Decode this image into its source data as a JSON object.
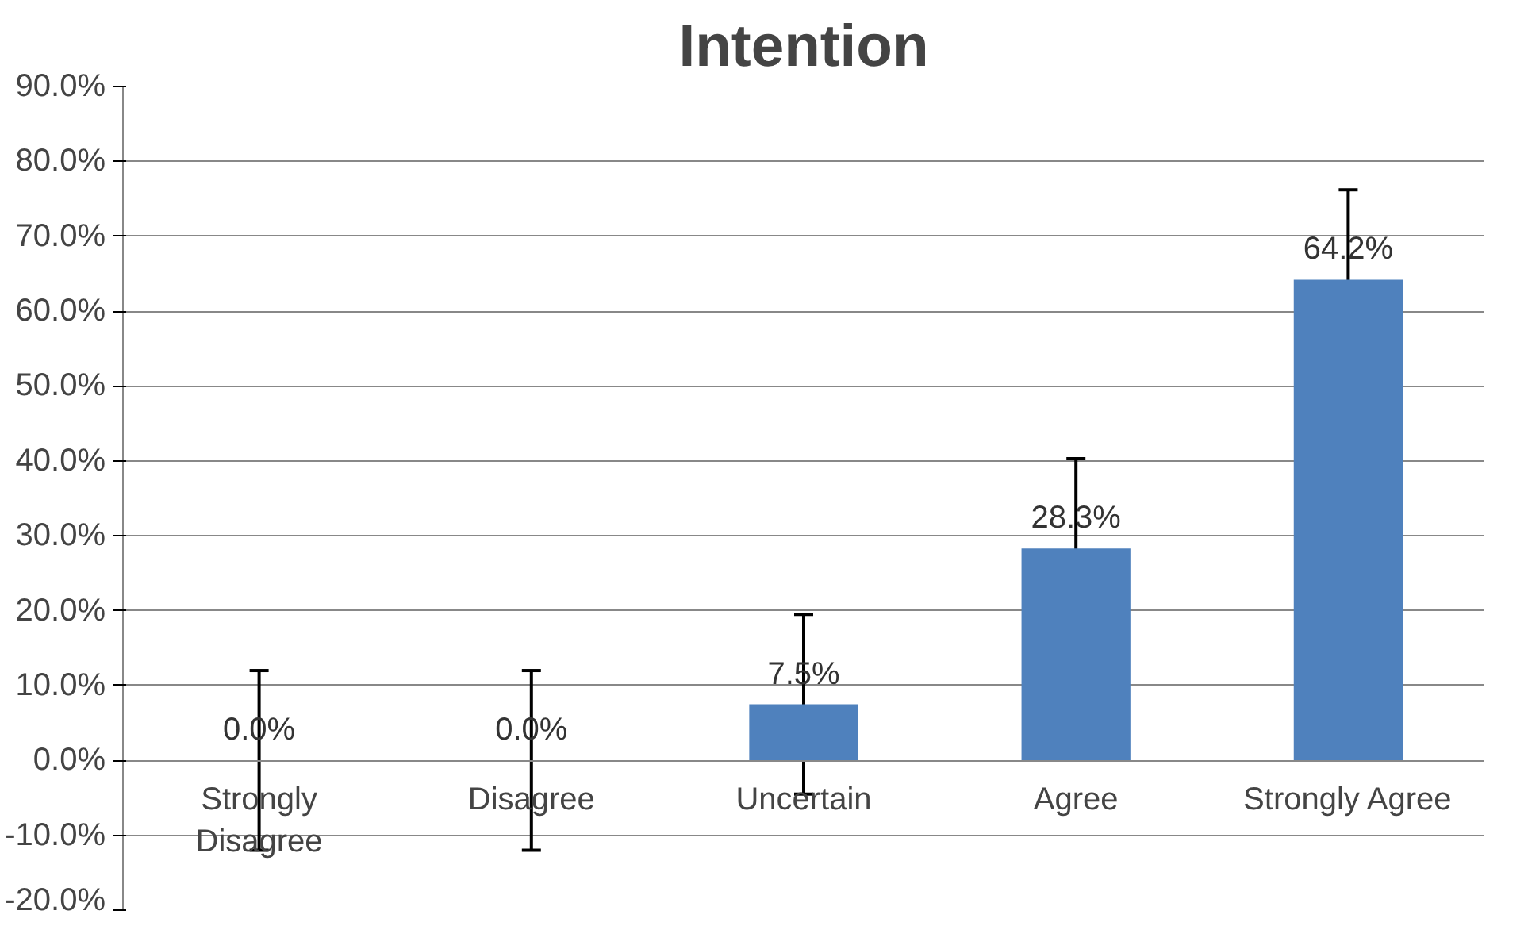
{
  "chart_data": {
    "type": "bar",
    "title": "Intention",
    "categories": [
      "Strongly Disagree",
      "Disagree",
      "Uncertain",
      "Agree",
      "Strongly Agree"
    ],
    "values": [
      0.0,
      0.0,
      7.5,
      28.3,
      64.2
    ],
    "value_labels": [
      "0.0%",
      "0.0%",
      "7.5%",
      "28.3%",
      "64.2%"
    ],
    "errors": [
      12,
      12,
      12,
      12,
      12
    ],
    "color": "#4f81bd",
    "ylim": [
      -20,
      90
    ],
    "yticks": [
      {
        "value": -20,
        "label": "-20.0%"
      },
      {
        "value": -10,
        "label": "-10.0%"
      },
      {
        "value": 0,
        "label": "0.0%"
      },
      {
        "value": 10,
        "label": "10.0%"
      },
      {
        "value": 20,
        "label": "20.0%"
      },
      {
        "value": 30,
        "label": "30.0%"
      },
      {
        "value": 40,
        "label": "40.0%"
      },
      {
        "value": 50,
        "label": "50.0%"
      },
      {
        "value": 60,
        "label": "60.0%"
      },
      {
        "value": 70,
        "label": "70.0%"
      },
      {
        "value": 80,
        "label": "80.0%"
      },
      {
        "value": 90,
        "label": "90.0%"
      }
    ],
    "grid": "y"
  }
}
